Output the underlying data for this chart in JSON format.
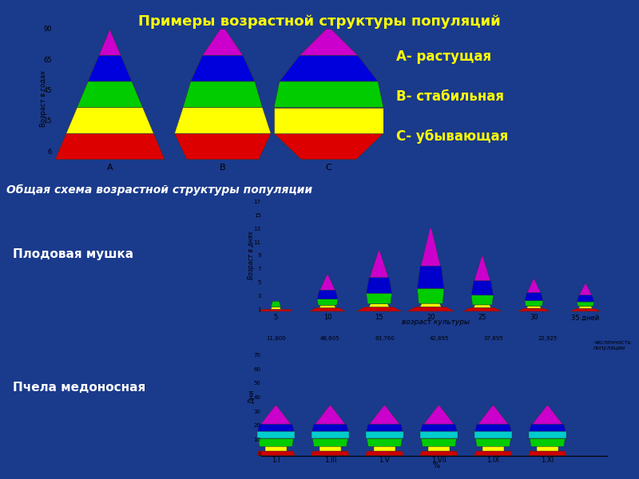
{
  "title": "Примеры возрастной структуры популяций",
  "subtitle1": "Общая схема возрастной структуры популяции",
  "label_a": "А- растущая",
  "label_b": "В- стабильная",
  "label_c": "С- убывающая",
  "label_mushka": "Плодовая мушка",
  "label_bee": "Пчела медоносная",
  "bg_color": "#1a3a8c",
  "panel_bg": "#e8dcc0",
  "title_color": "#ffff00",
  "subtitle_color": "#ffffff",
  "label_color": "#ffffff",
  "legend_color": "#ffff00",
  "pyramid_colors": [
    "#dd0000",
    "#ffff00",
    "#00cc00",
    "#0000dd",
    "#cc00cc"
  ],
  "fly_colors": [
    "#cc0000",
    "#ffff00",
    "#00cc00",
    "#0000cc",
    "#cc00cc"
  ],
  "bee_colors": [
    "#cc0000",
    "#ffff00",
    "#00cc00",
    "#00cccc",
    "#0000cc",
    "#cc00cc"
  ]
}
